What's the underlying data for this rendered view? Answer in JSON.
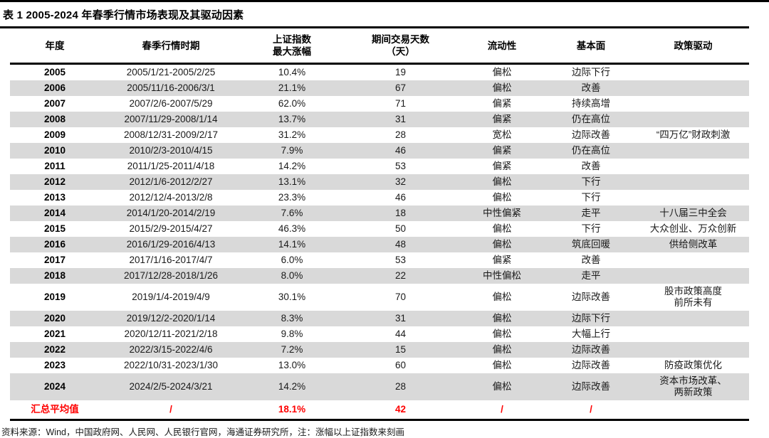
{
  "title": "表 1 2005-2024 年春季行情市场表现及其驱动因素",
  "source_note": "资料来源：Wind，中国政府网、人民网、人民银行官网，海通证券研究所，注：涨幅以上证指数来刻画",
  "colors": {
    "stripe_gray": "#d9d9d9",
    "summary_red": "#ff0000",
    "rule_black": "#000000"
  },
  "table": {
    "headers": [
      "年度",
      "春季行情时期",
      "上证指数\n最大涨幅",
      "期间交易天数\n（天）",
      "流动性",
      "基本面",
      "政策驱动"
    ],
    "rows": [
      [
        "2005",
        "2005/1/21-2005/2/25",
        "10.4%",
        "19",
        "偏松",
        "边际下行",
        ""
      ],
      [
        "2006",
        "2005/11/16-2006/3/1",
        "21.1%",
        "67",
        "偏松",
        "改善",
        ""
      ],
      [
        "2007",
        "2007/2/6-2007/5/29",
        "62.0%",
        "71",
        "偏紧",
        "持续高增",
        ""
      ],
      [
        "2008",
        "2007/11/29-2008/1/14",
        "13.7%",
        "31",
        "偏紧",
        "仍在高位",
        ""
      ],
      [
        "2009",
        "2008/12/31-2009/2/17",
        "31.2%",
        "28",
        "宽松",
        "边际改善",
        "“四万亿”财政刺激"
      ],
      [
        "2010",
        "2010/2/3-2010/4/15",
        "7.9%",
        "46",
        "偏紧",
        "仍在高位",
        ""
      ],
      [
        "2011",
        "2011/1/25-2011/4/18",
        "14.2%",
        "53",
        "偏紧",
        "改善",
        ""
      ],
      [
        "2012",
        "2012/1/6-2012/2/27",
        "13.1%",
        "32",
        "偏松",
        "下行",
        ""
      ],
      [
        "2013",
        "2012/12/4-2013/2/8",
        "23.3%",
        "46",
        "偏松",
        "下行",
        ""
      ],
      [
        "2014",
        "2014/1/20-2014/2/19",
        "7.6%",
        "18",
        "中性偏紧",
        "走平",
        "十八届三中全会"
      ],
      [
        "2015",
        "2015/2/9-2015/4/27",
        "46.3%",
        "50",
        "偏松",
        "下行",
        "大众创业、万众创新"
      ],
      [
        "2016",
        "2016/1/29-2016/4/13",
        "14.1%",
        "48",
        "偏松",
        "筑底回暖",
        "供给侧改革"
      ],
      [
        "2017",
        "2017/1/16-2017/4/7",
        "6.0%",
        "53",
        "偏紧",
        "改善",
        ""
      ],
      [
        "2018",
        "2017/12/28-2018/1/26",
        "8.0%",
        "22",
        "中性偏松",
        "走平",
        ""
      ],
      [
        "2019",
        "2019/1/4-2019/4/9",
        "30.1%",
        "70",
        "偏松",
        "边际改善",
        "股市政策高度\n前所未有"
      ],
      [
        "2020",
        "2019/12/2-2020/1/14",
        "8.3%",
        "31",
        "偏松",
        "边际下行",
        ""
      ],
      [
        "2021",
        "2020/12/11-2021/2/18",
        "9.8%",
        "44",
        "偏松",
        "大幅上行",
        ""
      ],
      [
        "2022",
        "2022/3/15-2022/4/6",
        "7.2%",
        "15",
        "偏松",
        "边际改善",
        ""
      ],
      [
        "2023",
        "2022/10/31-2023/1/30",
        "13.0%",
        "60",
        "偏松",
        "边际改善",
        "防疫政策优化"
      ],
      [
        "2024",
        "2024/2/5-2024/3/21",
        "14.2%",
        "28",
        "偏松",
        "边际改善",
        "资本市场改革、\n两新政策"
      ]
    ],
    "summary_row": [
      "汇总平均值",
      "/",
      "18.1%",
      "42",
      "/",
      "/",
      ""
    ]
  }
}
